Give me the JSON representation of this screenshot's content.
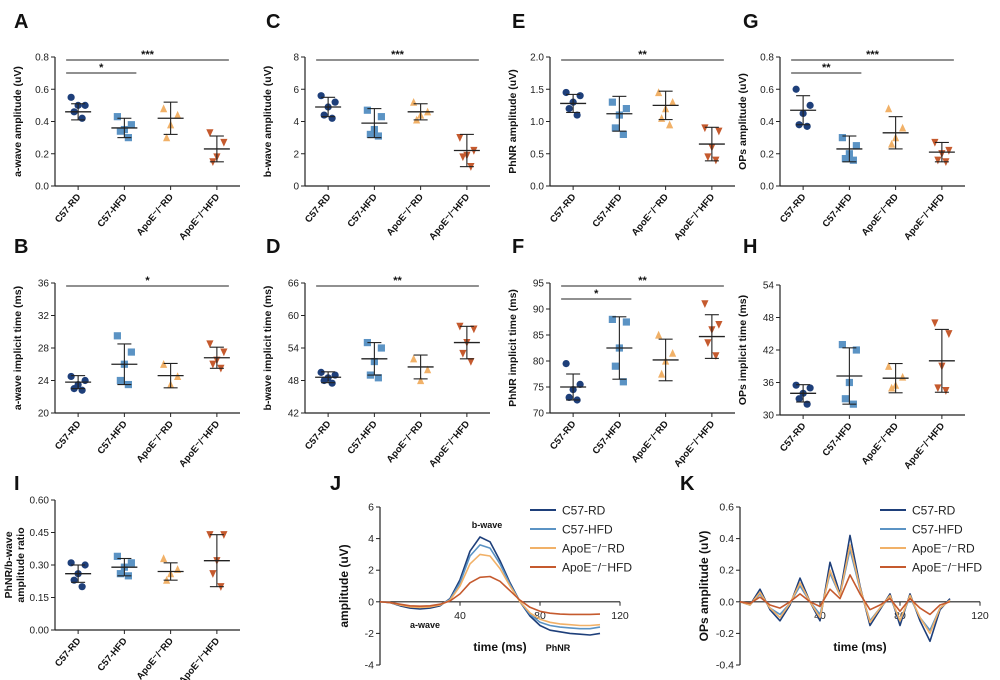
{
  "colors": {
    "C57-RD": "#1e3f7a",
    "C57-HFD": "#5b93c4",
    "ApoE-RD": "#f1b168",
    "ApoE-HFD": "#c55a2e",
    "axis": "#222222"
  },
  "group_labels": [
    "C57-RD",
    "C57-HFD",
    "ApoE⁻/⁻RD",
    "ApoE⁻/⁻HFD"
  ],
  "chart_data": [
    {
      "letter": "A",
      "type": "scatter",
      "ylabel": "a-wave amplitude (uV)",
      "ylim": [
        0.0,
        0.8
      ],
      "yticks": [
        "0.0",
        "0.2",
        "0.4",
        "0.6",
        "0.8"
      ],
      "categories": [
        "C57-RD",
        "C57-HFD",
        "ApoE⁻/⁻RD",
        "ApoE⁻/⁻HFD"
      ],
      "means": [
        0.46,
        0.36,
        0.42,
        0.23
      ],
      "sd": [
        0.05,
        0.06,
        0.1,
        0.08
      ],
      "points": [
        [
          0.55,
          0.5,
          0.5,
          0.46,
          0.42
        ],
        [
          0.43,
          0.38,
          0.35,
          0.34,
          0.3
        ],
        [
          0.48,
          0.44,
          0.38,
          0.3
        ],
        [
          0.33,
          0.27,
          0.18,
          0.15
        ]
      ],
      "significance": [
        {
          "from": 0,
          "to": 1,
          "label": "*",
          "level": 1
        },
        {
          "from": 0,
          "to": 3,
          "label": "***",
          "level": 2
        }
      ]
    },
    {
      "letter": "C",
      "type": "scatter",
      "ylabel": "b-wave amplitude (uV)",
      "ylim": [
        0,
        8
      ],
      "yticks": [
        "0",
        "2",
        "4",
        "6",
        "8"
      ],
      "categories": [
        "C57-RD",
        "C57-HFD",
        "ApoE⁻/⁻RD",
        "ApoE⁻/⁻HFD"
      ],
      "means": [
        4.9,
        3.9,
        4.6,
        2.2
      ],
      "sd": [
        0.6,
        0.9,
        0.5,
        1.0
      ],
      "points": [
        [
          5.6,
          5.2,
          4.9,
          4.4,
          4.2
        ],
        [
          4.7,
          4.3,
          3.5,
          3.2,
          3.1
        ],
        [
          5.2,
          4.6,
          4.4,
          4.1
        ],
        [
          3.0,
          2.2,
          1.9,
          1.8,
          1.2
        ]
      ],
      "significance": [
        {
          "from": 0,
          "to": 3,
          "label": "***",
          "level": 1
        }
      ]
    },
    {
      "letter": "E",
      "type": "scatter",
      "ylabel": "PhNR amplitude (uV)",
      "ylim": [
        0.0,
        2.0
      ],
      "yticks": [
        "0.0",
        "0.5",
        "1.0",
        "1.5",
        "2.0"
      ],
      "categories": [
        "C57-RD",
        "C57-HFD",
        "ApoE⁻/⁻RD",
        "ApoE⁻/⁻HFD"
      ],
      "means": [
        1.28,
        1.12,
        1.25,
        0.65
      ],
      "sd": [
        0.14,
        0.27,
        0.22,
        0.26
      ],
      "points": [
        [
          1.45,
          1.4,
          1.3,
          1.2,
          1.1
        ],
        [
          1.3,
          1.2,
          1.1,
          0.9,
          0.8
        ],
        [
          1.45,
          1.3,
          1.2,
          1.05,
          0.95
        ],
        [
          0.9,
          0.85,
          0.6,
          0.45,
          0.4
        ]
      ],
      "significance": [
        {
          "from": 0,
          "to": 3,
          "label": "**",
          "level": 1
        }
      ]
    },
    {
      "letter": "G",
      "type": "scatter",
      "ylabel": "OPs amplitude (uV)",
      "ylim": [
        0.0,
        0.8
      ],
      "yticks": [
        "0.0",
        "0.2",
        "0.4",
        "0.6",
        "0.8"
      ],
      "categories": [
        "C57-RD",
        "C57-HFD",
        "ApoE⁻/⁻RD",
        "ApoE⁻/⁻HFD"
      ],
      "means": [
        0.47,
        0.23,
        0.33,
        0.21
      ],
      "sd": [
        0.09,
        0.08,
        0.1,
        0.06
      ],
      "points": [
        [
          0.6,
          0.5,
          0.45,
          0.38,
          0.37
        ],
        [
          0.3,
          0.25,
          0.2,
          0.17,
          0.16
        ],
        [
          0.48,
          0.36,
          0.3,
          0.26
        ],
        [
          0.27,
          0.22,
          0.2,
          0.16,
          0.15
        ]
      ],
      "significance": [
        {
          "from": 0,
          "to": 1,
          "label": "**",
          "level": 1
        },
        {
          "from": 0,
          "to": 3,
          "label": "***",
          "level": 2
        }
      ]
    },
    {
      "letter": "B",
      "type": "scatter",
      "ylabel": "a-wave implicit time (ms)",
      "ylim": [
        20,
        36
      ],
      "yticks": [
        "20",
        "24",
        "28",
        "32",
        "36"
      ],
      "categories": [
        "C57-RD",
        "C57-HFD",
        "ApoE⁻/⁻RD",
        "ApoE⁻/⁻HFD"
      ],
      "means": [
        23.8,
        26.0,
        24.6,
        26.8
      ],
      "sd": [
        0.8,
        2.5,
        1.5,
        1.3
      ],
      "points": [
        [
          24.5,
          24.0,
          23.5,
          23.0,
          22.8
        ],
        [
          29.5,
          27.5,
          26.0,
          24.0,
          23.5
        ],
        [
          26.0,
          24.5,
          23.5
        ],
        [
          28.5,
          27.5,
          26.5,
          26.0,
          25.5
        ]
      ],
      "significance": [
        {
          "from": 0,
          "to": 3,
          "label": "*",
          "level": 1
        }
      ]
    },
    {
      "letter": "D",
      "type": "scatter",
      "ylabel": "b-wave implicit time (ms)",
      "ylim": [
        42,
        66
      ],
      "yticks": [
        "42",
        "48",
        "54",
        "60",
        "66"
      ],
      "categories": [
        "C57-RD",
        "C57-HFD",
        "ApoE⁻/⁻RD",
        "ApoE⁻/⁻HFD"
      ],
      "means": [
        48.6,
        52.0,
        50.5,
        55.0
      ],
      "sd": [
        1.0,
        3.0,
        2.2,
        3.0
      ],
      "points": [
        [
          49.5,
          49.0,
          48.5,
          48.0,
          47.5
        ],
        [
          55.0,
          54.0,
          51.5,
          49.0,
          48.5
        ],
        [
          52.0,
          50.0,
          48.0
        ],
        [
          58.0,
          57.5,
          55.0,
          53.0,
          51.5
        ]
      ],
      "significance": [
        {
          "from": 0,
          "to": 3,
          "label": "**",
          "level": 1
        }
      ]
    },
    {
      "letter": "F",
      "type": "scatter",
      "ylabel": "PhNR implicit time (ms)",
      "ylim": [
        70,
        95
      ],
      "yticks": [
        "70",
        "75",
        "80",
        "85",
        "90",
        "95"
      ],
      "categories": [
        "C57-RD",
        "C57-HFD",
        "ApoE⁻/⁻RD",
        "ApoE⁻/⁻HFD"
      ],
      "means": [
        75.0,
        82.5,
        80.2,
        84.7
      ],
      "sd": [
        2.5,
        6.0,
        4.0,
        4.2
      ],
      "points": [
        [
          79.5,
          75.5,
          74.5,
          73.0,
          72.5
        ],
        [
          88.0,
          87.5,
          82.5,
          79.0,
          76.0
        ],
        [
          85.0,
          81.5,
          80.0,
          77.5
        ],
        [
          91.0,
          87.0,
          86.0,
          83.5,
          81.0
        ]
      ],
      "significance": [
        {
          "from": 0,
          "to": 1,
          "label": "*",
          "level": 1
        },
        {
          "from": 0,
          "to": 3,
          "label": "**",
          "level": 2
        }
      ]
    },
    {
      "letter": "H",
      "type": "scatter",
      "ylabel": "OPs implicit time (ms)",
      "ylim": [
        30,
        54
      ],
      "yticks": [
        "30",
        "36",
        "42",
        "48",
        "54"
      ],
      "categories": [
        "C57-RD",
        "C57-HFD",
        "ApoE⁻/⁻RD",
        "ApoE⁻/⁻HFD"
      ],
      "means": [
        34.0,
        37.2,
        36.8,
        40.0
      ],
      "sd": [
        1.6,
        5.2,
        2.7,
        5.8
      ],
      "points": [
        [
          35.5,
          35.0,
          34.0,
          33.0,
          32.0
        ],
        [
          43.0,
          42.0,
          36.0,
          33.0,
          32.0
        ],
        [
          39.0,
          37.0,
          35.5,
          35.0
        ],
        [
          47.0,
          45.0,
          39.0,
          35.0,
          34.5
        ]
      ],
      "significance": []
    },
    {
      "letter": "I",
      "type": "scatter",
      "ylabel": "PhNR/b-wave\namplitude ratio",
      "ylim": [
        0.0,
        0.6
      ],
      "yticks": [
        "0.00",
        "0.15",
        "0.30",
        "0.45",
        "0.60"
      ],
      "categories": [
        "C57-RD",
        "C57-HFD",
        "ApoE⁻/⁻RD",
        "ApoE⁻/⁻HFD"
      ],
      "means": [
        0.26,
        0.29,
        0.27,
        0.32
      ],
      "sd": [
        0.04,
        0.04,
        0.04,
        0.12
      ],
      "points": [
        [
          0.31,
          0.3,
          0.26,
          0.23,
          0.2
        ],
        [
          0.34,
          0.31,
          0.29,
          0.26,
          0.25
        ],
        [
          0.33,
          0.28,
          0.26,
          0.23
        ],
        [
          0.44,
          0.44,
          0.32,
          0.26,
          0.2
        ]
      ],
      "significance": []
    },
    {
      "letter": "J",
      "type": "line",
      "xlabel": "time (ms)",
      "ylabel": "amplitude (uV)",
      "xlim": [
        0,
        120
      ],
      "ylim": [
        -4,
        6
      ],
      "xticks": [
        "40",
        "80",
        "120"
      ],
      "yticks": [
        "-4",
        "-2",
        "0",
        "2",
        "4",
        "6"
      ],
      "annotations": [
        "a-wave",
        "b-wave",
        "PhNR"
      ],
      "x": [
        0,
        5,
        10,
        15,
        20,
        25,
        30,
        35,
        40,
        45,
        50,
        55,
        60,
        65,
        70,
        75,
        80,
        85,
        90,
        95,
        100,
        105,
        110
      ],
      "series": [
        {
          "name": "C57-RD",
          "values": [
            0.0,
            -0.05,
            -0.25,
            -0.4,
            -0.45,
            -0.4,
            -0.25,
            0.2,
            1.4,
            3.2,
            4.1,
            3.8,
            2.6,
            1.2,
            0.0,
            -0.9,
            -1.5,
            -1.8,
            -1.9,
            -2.0,
            -2.05,
            -2.1,
            -2.0
          ]
        },
        {
          "name": "C57-HFD",
          "values": [
            0.0,
            -0.05,
            -0.2,
            -0.3,
            -0.35,
            -0.3,
            -0.2,
            0.15,
            1.2,
            2.9,
            3.6,
            3.4,
            2.4,
            1.1,
            0.0,
            -0.8,
            -1.3,
            -1.5,
            -1.6,
            -1.65,
            -1.7,
            -1.7,
            -1.6
          ]
        },
        {
          "name": "ApoE⁻/⁻RD",
          "values": [
            0.0,
            -0.05,
            -0.2,
            -0.32,
            -0.36,
            -0.32,
            -0.2,
            0.1,
            1.0,
            2.4,
            3.0,
            2.9,
            2.1,
            1.0,
            0.0,
            -0.7,
            -1.1,
            -1.3,
            -1.4,
            -1.45,
            -1.5,
            -1.5,
            -1.45
          ]
        },
        {
          "name": "ApoE⁻/⁻HFD",
          "values": [
            0.0,
            -0.05,
            -0.15,
            -0.25,
            -0.28,
            -0.25,
            -0.15,
            0.05,
            0.5,
            1.2,
            1.55,
            1.6,
            1.3,
            0.7,
            0.1,
            -0.35,
            -0.6,
            -0.72,
            -0.78,
            -0.8,
            -0.8,
            -0.8,
            -0.78
          ]
        }
      ]
    },
    {
      "letter": "K",
      "type": "line",
      "xlabel": "time (ms)",
      "ylabel": "OPs amplitude (uV)",
      "xlim": [
        0,
        120
      ],
      "ylim": [
        -0.4,
        0.6
      ],
      "xticks": [
        "40",
        "80",
        "120"
      ],
      "yticks": [
        "-0.4",
        "-0.2",
        "0.0",
        "0.2",
        "0.4",
        "0.6"
      ],
      "x": [
        0,
        5,
        10,
        15,
        20,
        25,
        30,
        35,
        40,
        45,
        50,
        55,
        60,
        65,
        70,
        75,
        80,
        85,
        90,
        95,
        100,
        105
      ],
      "series": [
        {
          "name": "C57-RD",
          "values": [
            0.0,
            -0.02,
            0.08,
            -0.05,
            -0.12,
            -0.02,
            0.15,
            0.0,
            -0.12,
            0.25,
            0.05,
            0.42,
            0.1,
            -0.15,
            -0.05,
            0.05,
            -0.15,
            0.05,
            -0.12,
            -0.25,
            -0.05,
            0.02
          ]
        },
        {
          "name": "C57-HFD",
          "values": [
            0.0,
            -0.02,
            0.05,
            -0.04,
            -0.08,
            -0.01,
            0.1,
            0.0,
            -0.08,
            0.18,
            0.04,
            0.33,
            0.08,
            -0.12,
            -0.04,
            0.03,
            -0.12,
            0.03,
            -0.1,
            -0.18,
            -0.04,
            0.01
          ]
        },
        {
          "name": "ApoE⁻/⁻RD",
          "values": [
            0.0,
            -0.02,
            0.06,
            -0.04,
            -0.1,
            -0.01,
            0.12,
            0.0,
            -0.1,
            0.2,
            0.04,
            0.36,
            0.09,
            -0.13,
            -0.04,
            0.04,
            -0.12,
            0.04,
            -0.1,
            -0.2,
            -0.04,
            0.01
          ]
        },
        {
          "name": "ApoE⁻/⁻HFD",
          "values": [
            0.0,
            -0.01,
            0.03,
            -0.02,
            -0.04,
            0.0,
            0.05,
            0.0,
            -0.03,
            0.08,
            0.02,
            0.17,
            0.05,
            -0.05,
            -0.02,
            0.02,
            -0.06,
            0.02,
            -0.04,
            -0.08,
            -0.02,
            0.0
          ]
        }
      ]
    }
  ]
}
